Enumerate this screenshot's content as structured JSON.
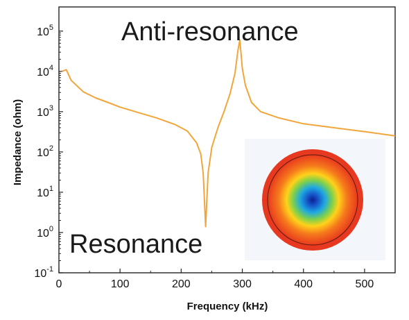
{
  "chart_data": {
    "type": "line",
    "title": "",
    "xlabel": "Frequency (kHz)",
    "ylabel": "Impedance (ohm)",
    "xlim": [
      0,
      550
    ],
    "ylim_exponent": [
      -1,
      5.6
    ],
    "y_scale": "log",
    "grid": false,
    "x_ticks": [
      0,
      100,
      200,
      300,
      400,
      500
    ],
    "x_tick_labels": [
      "0",
      "100",
      "200",
      "300",
      "400",
      "500"
    ],
    "y_ticks": [
      {
        "base": "10",
        "exp": "-1"
      },
      {
        "base": "10",
        "exp": "0"
      },
      {
        "base": "10",
        "exp": "1"
      },
      {
        "base": "10",
        "exp": "2"
      },
      {
        "base": "10",
        "exp": "3"
      },
      {
        "base": "10",
        "exp": "4"
      },
      {
        "base": "10",
        "exp": "5"
      }
    ],
    "series": [
      {
        "color": "#f2a53a",
        "x": [
          5,
          12,
          20,
          40,
          60,
          80,
          100,
          130,
          160,
          190,
          210,
          225,
          232,
          236,
          240,
          244,
          250,
          260,
          270,
          280,
          288,
          293,
          296,
          300,
          305,
          315,
          330,
          360,
          400,
          450,
          500,
          550
        ],
        "y": [
          10000,
          11000,
          6000,
          3100,
          2200,
          1700,
          1300,
          950,
          700,
          480,
          330,
          170,
          90,
          30,
          1.4,
          30,
          130,
          400,
          1000,
          2800,
          9000,
          35000,
          60000,
          12000,
          4500,
          1700,
          1000,
          700,
          500,
          400,
          320,
          250
        ]
      }
    ],
    "annotations": [
      {
        "text": "Anti-resonance"
      },
      {
        "text": "Resonance"
      }
    ],
    "inset": {
      "description_colors": [
        "#e83a1e",
        "#f57a1c",
        "#ffd21a",
        "#7fd14a",
        "#1fa9e0",
        "#1654c9",
        "#0b1f8a"
      ]
    }
  }
}
